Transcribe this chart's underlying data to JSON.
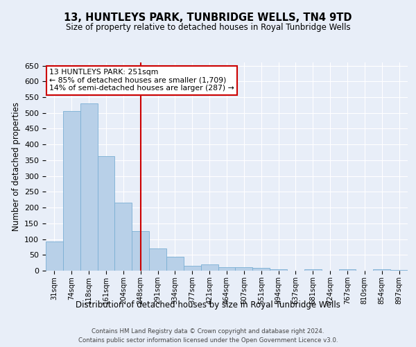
{
  "title": "13, HUNTLEYS PARK, TUNBRIDGE WELLS, TN4 9TD",
  "subtitle": "Size of property relative to detached houses in Royal Tunbridge Wells",
  "xlabel": "Distribution of detached houses by size in Royal Tunbridge Wells",
  "ylabel": "Number of detached properties",
  "footer_line1": "Contains HM Land Registry data © Crown copyright and database right 2024.",
  "footer_line2": "Contains public sector information licensed under the Open Government Licence v3.0.",
  "annotation_title": "13 HUNTLEYS PARK: 251sqm",
  "annotation_line2": "← 85% of detached houses are smaller (1,709)",
  "annotation_line3": "14% of semi-detached houses are larger (287) →",
  "categories": [
    "31sqm",
    "74sqm",
    "118sqm",
    "161sqm",
    "204sqm",
    "248sqm",
    "291sqm",
    "334sqm",
    "377sqm",
    "421sqm",
    "464sqm",
    "507sqm",
    "551sqm",
    "594sqm",
    "637sqm",
    "681sqm",
    "724sqm",
    "767sqm",
    "810sqm",
    "854sqm",
    "897sqm"
  ],
  "values": [
    92,
    507,
    530,
    364,
    215,
    125,
    70,
    43,
    16,
    20,
    11,
    11,
    9,
    5,
    0,
    5,
    0,
    4,
    0,
    4,
    3
  ],
  "bar_color": "#b8d0e8",
  "bar_edge_color": "#7aafd4",
  "vline_color": "#cc0000",
  "annotation_box_edgecolor": "#cc0000",
  "background_color": "#e8eef8",
  "grid_color": "#ffffff",
  "ylim": [
    0,
    660
  ],
  "yticks": [
    0,
    50,
    100,
    150,
    200,
    250,
    300,
    350,
    400,
    450,
    500,
    550,
    600,
    650
  ],
  "property_label_idx": 5
}
